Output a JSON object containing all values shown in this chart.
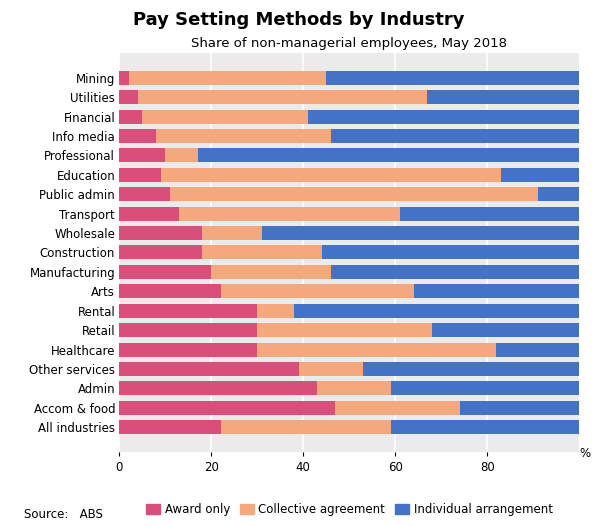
{
  "title": "Pay Setting Methods by Industry",
  "subtitle": "Share of non-managerial employees, May 2018",
  "source": "Source:   ABS",
  "categories": [
    "Mining",
    "Utilities",
    "Financial",
    "Info media",
    "Professional",
    "Education",
    "Public admin",
    "Transport",
    "Wholesale",
    "Construction",
    "Manufacturing",
    "Arts",
    "Rental",
    "Retail",
    "Healthcare",
    "Other services",
    "Admin",
    "Accom & food",
    "All industries"
  ],
  "award_only": [
    2,
    4,
    5,
    8,
    10,
    9,
    11,
    13,
    18,
    18,
    20,
    22,
    30,
    30,
    30,
    39,
    43,
    47,
    22
  ],
  "collective_agreement": [
    43,
    63,
    36,
    38,
    7,
    74,
    80,
    48,
    13,
    26,
    26,
    42,
    8,
    38,
    52,
    14,
    16,
    27,
    37
  ],
  "individual_arrangement": [
    55,
    33,
    59,
    54,
    83,
    17,
    9,
    39,
    69,
    56,
    54,
    36,
    62,
    32,
    18,
    47,
    41,
    26,
    41
  ],
  "colors": {
    "award_only": "#D94F7A",
    "collective_agreement": "#F5A77E",
    "individual_arrangement": "#4472C4"
  },
  "legend_labels": [
    "Award only",
    "Collective agreement",
    "Individual arrangement"
  ],
  "xlim": [
    0,
    100
  ],
  "bar_height": 0.72,
  "fig_width": 5.97,
  "fig_height": 5.26,
  "dpi": 100,
  "title_fontsize": 13,
  "subtitle_fontsize": 9.5,
  "tick_fontsize": 8.5,
  "legend_fontsize": 8.5,
  "source_fontsize": 8.5
}
